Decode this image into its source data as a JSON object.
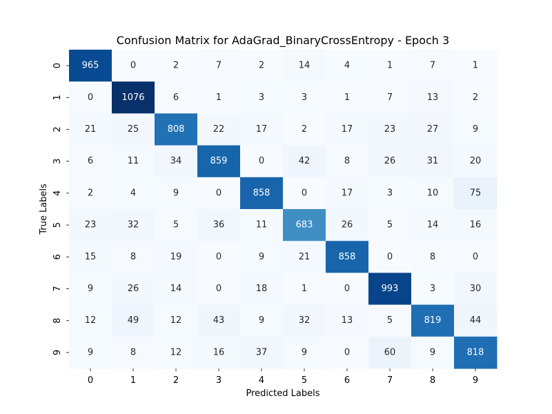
{
  "chart_data": {
    "type": "heatmap",
    "title": "Confusion Matrix for AdaGrad_BinaryCrossEntropy - Epoch 3",
    "xlabel": "Predicted Labels",
    "ylabel": "True Labels",
    "x_categories": [
      "0",
      "1",
      "2",
      "3",
      "4",
      "5",
      "6",
      "7",
      "8",
      "9"
    ],
    "y_categories": [
      "0",
      "1",
      "2",
      "3",
      "4",
      "5",
      "6",
      "7",
      "8",
      "9"
    ],
    "values": [
      [
        965,
        0,
        2,
        7,
        2,
        14,
        4,
        1,
        7,
        1
      ],
      [
        0,
        1076,
        6,
        1,
        3,
        3,
        1,
        7,
        13,
        2
      ],
      [
        21,
        25,
        808,
        22,
        17,
        2,
        17,
        23,
        27,
        9
      ],
      [
        6,
        11,
        34,
        859,
        0,
        42,
        8,
        26,
        31,
        20
      ],
      [
        2,
        4,
        9,
        0,
        858,
        0,
        17,
        3,
        10,
        75
      ],
      [
        23,
        32,
        5,
        36,
        11,
        683,
        26,
        5,
        14,
        16
      ],
      [
        15,
        8,
        19,
        0,
        9,
        21,
        858,
        0,
        8,
        0
      ],
      [
        9,
        26,
        14,
        0,
        18,
        1,
        0,
        993,
        3,
        30
      ],
      [
        12,
        49,
        12,
        43,
        9,
        32,
        13,
        5,
        819,
        44
      ],
      [
        9,
        8,
        12,
        16,
        37,
        9,
        0,
        60,
        9,
        818
      ]
    ],
    "colormap": "Blues",
    "color_range": [
      0,
      1076
    ],
    "colorbar": false,
    "annotations": true,
    "grid": false
  }
}
